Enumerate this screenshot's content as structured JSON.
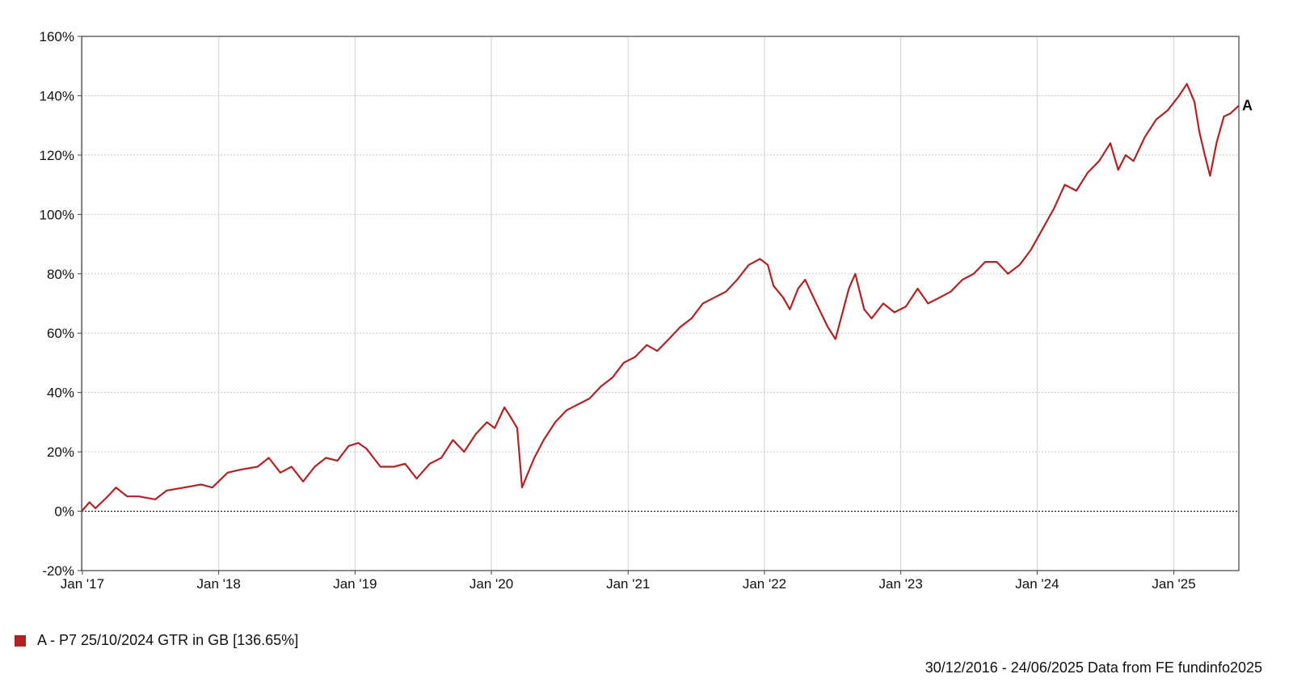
{
  "chart_data": {
    "type": "line",
    "ylim": [
      -20,
      160
    ],
    "yticks": [
      "160%",
      "140%",
      "120%",
      "100%",
      "80%",
      "60%",
      "40%",
      "20%",
      "0%",
      "-20%"
    ],
    "ytick_values": [
      160,
      140,
      120,
      100,
      80,
      60,
      40,
      20,
      0,
      -20
    ],
    "xlim": [
      "2016-12-30",
      "2025-06-24"
    ],
    "xticks": [
      {
        "date": "2017-01-01",
        "label": "Jan '17"
      },
      {
        "date": "2018-01-01",
        "label": "Jan '18"
      },
      {
        "date": "2019-01-01",
        "label": "Jan '19"
      },
      {
        "date": "2020-01-01",
        "label": "Jan '20"
      },
      {
        "date": "2021-01-01",
        "label": "Jan '21"
      },
      {
        "date": "2022-01-01",
        "label": "Jan '22"
      },
      {
        "date": "2023-01-01",
        "label": "Jan '23"
      },
      {
        "date": "2024-01-01",
        "label": "Jan '24"
      },
      {
        "date": "2025-01-01",
        "label": "Jan '25"
      }
    ],
    "grid": true,
    "series": [
      {
        "name": "A",
        "color": "#b22222",
        "end_label": "A",
        "points": [
          [
            "2016-12-30",
            0
          ],
          [
            "2017-01-20",
            3
          ],
          [
            "2017-02-05",
            1
          ],
          [
            "2017-03-10",
            5
          ],
          [
            "2017-04-01",
            8
          ],
          [
            "2017-05-01",
            5
          ],
          [
            "2017-06-01",
            5
          ],
          [
            "2017-07-15",
            4
          ],
          [
            "2017-08-15",
            7
          ],
          [
            "2017-10-01",
            8
          ],
          [
            "2017-11-15",
            9
          ],
          [
            "2017-12-15",
            8
          ],
          [
            "2018-01-25",
            13
          ],
          [
            "2018-03-01",
            14
          ],
          [
            "2018-04-15",
            15
          ],
          [
            "2018-05-15",
            18
          ],
          [
            "2018-06-15",
            13
          ],
          [
            "2018-07-15",
            15
          ],
          [
            "2018-08-15",
            10
          ],
          [
            "2018-09-15",
            15
          ],
          [
            "2018-10-15",
            18
          ],
          [
            "2018-11-15",
            17
          ],
          [
            "2018-12-15",
            22
          ],
          [
            "2019-01-10",
            23
          ],
          [
            "2019-02-01",
            21
          ],
          [
            "2019-03-10",
            15
          ],
          [
            "2019-04-15",
            15
          ],
          [
            "2019-05-15",
            16
          ],
          [
            "2019-06-15",
            11
          ],
          [
            "2019-07-20",
            16
          ],
          [
            "2019-08-20",
            18
          ],
          [
            "2019-09-20",
            24
          ],
          [
            "2019-10-20",
            20
          ],
          [
            "2019-11-20",
            26
          ],
          [
            "2019-12-20",
            30
          ],
          [
            "2020-01-10",
            28
          ],
          [
            "2020-02-05",
            35
          ],
          [
            "2020-02-20",
            32
          ],
          [
            "2020-03-10",
            28
          ],
          [
            "2020-03-23",
            8
          ],
          [
            "2020-04-05",
            12
          ],
          [
            "2020-04-25",
            18
          ],
          [
            "2020-05-20",
            24
          ],
          [
            "2020-06-20",
            30
          ],
          [
            "2020-07-20",
            34
          ],
          [
            "2020-08-20",
            36
          ],
          [
            "2020-09-20",
            38
          ],
          [
            "2020-10-20",
            42
          ],
          [
            "2020-11-20",
            45
          ],
          [
            "2020-12-20",
            50
          ],
          [
            "2021-01-20",
            52
          ],
          [
            "2021-02-20",
            56
          ],
          [
            "2021-03-20",
            54
          ],
          [
            "2021-04-20",
            58
          ],
          [
            "2021-05-20",
            62
          ],
          [
            "2021-06-20",
            65
          ],
          [
            "2021-07-20",
            70
          ],
          [
            "2021-08-20",
            72
          ],
          [
            "2021-09-20",
            74
          ],
          [
            "2021-10-20",
            78
          ],
          [
            "2021-11-20",
            83
          ],
          [
            "2021-12-20",
            85
          ],
          [
            "2022-01-10",
            83
          ],
          [
            "2022-01-25",
            76
          ],
          [
            "2022-02-20",
            72
          ],
          [
            "2022-03-10",
            68
          ],
          [
            "2022-04-01",
            75
          ],
          [
            "2022-04-20",
            78
          ],
          [
            "2022-05-20",
            70
          ],
          [
            "2022-06-20",
            62
          ],
          [
            "2022-07-10",
            58
          ],
          [
            "2022-07-25",
            65
          ],
          [
            "2022-08-15",
            75
          ],
          [
            "2022-09-01",
            80
          ],
          [
            "2022-09-25",
            68
          ],
          [
            "2022-10-15",
            65
          ],
          [
            "2022-11-15",
            70
          ],
          [
            "2022-12-15",
            67
          ],
          [
            "2023-01-15",
            69
          ],
          [
            "2023-02-15",
            75
          ],
          [
            "2023-03-15",
            70
          ],
          [
            "2023-04-15",
            72
          ],
          [
            "2023-05-15",
            74
          ],
          [
            "2023-06-15",
            78
          ],
          [
            "2023-07-15",
            80
          ],
          [
            "2023-08-15",
            84
          ],
          [
            "2023-09-15",
            84
          ],
          [
            "2023-10-15",
            80
          ],
          [
            "2023-11-15",
            83
          ],
          [
            "2023-12-15",
            88
          ],
          [
            "2024-01-15",
            95
          ],
          [
            "2024-02-15",
            102
          ],
          [
            "2024-03-15",
            110
          ],
          [
            "2024-04-15",
            108
          ],
          [
            "2024-05-15",
            114
          ],
          [
            "2024-06-15",
            118
          ],
          [
            "2024-07-15",
            124
          ],
          [
            "2024-08-05",
            115
          ],
          [
            "2024-08-25",
            120
          ],
          [
            "2024-09-15",
            118
          ],
          [
            "2024-10-15",
            126
          ],
          [
            "2024-11-15",
            132
          ],
          [
            "2024-12-15",
            135
          ],
          [
            "2025-01-15",
            140
          ],
          [
            "2025-02-05",
            144
          ],
          [
            "2025-02-25",
            138
          ],
          [
            "2025-03-10",
            128
          ],
          [
            "2025-03-25",
            120
          ],
          [
            "2025-04-08",
            113
          ],
          [
            "2025-04-25",
            124
          ],
          [
            "2025-05-15",
            133
          ],
          [
            "2025-06-01",
            134
          ],
          [
            "2025-06-24",
            136.65
          ]
        ]
      }
    ]
  },
  "legend": {
    "swatch_color": "#b22222",
    "label": "A - P7 25/10/2024 GTR in GB [136.65%]"
  },
  "footer": "30/12/2016 - 24/06/2025 Data from FE fundinfo2025"
}
